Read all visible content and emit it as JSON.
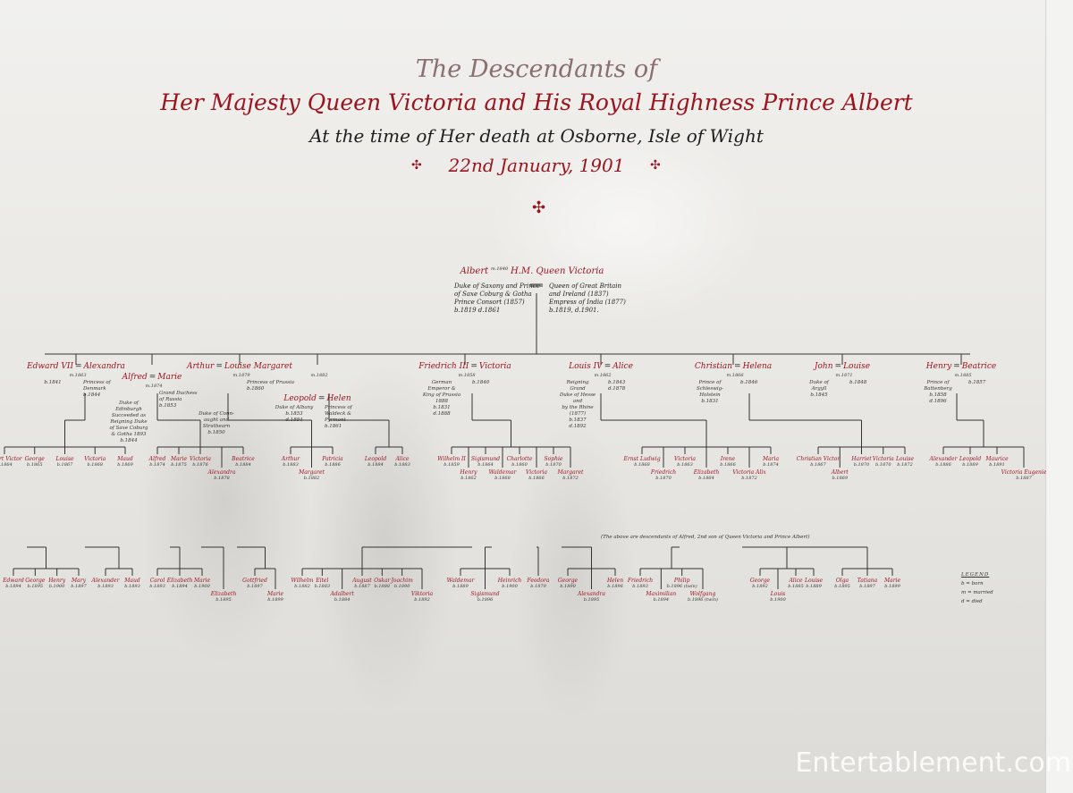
{
  "title": {
    "line1": "The Descendants of",
    "line2": "Her Majesty Queen Victoria and His Royal Highness Prince Albert",
    "line3": "At the time of Her death at Osborne, Isle of Wight",
    "line4": "22nd January, 1901",
    "ornament": "✣"
  },
  "root": {
    "husband": "Albert",
    "marriage": "m.1840",
    "wife": "H.M. Queen Victoria",
    "husband_details": "Duke of Saxony and Prince\nof Saxe Coburg & Gotha\nPrince Consort (1857)\nb.1819  d.1861",
    "wife_details": "Queen of Great Britain\nand Ireland (1837)\nEmpress of India (1877)\nb.1819, d.1901."
  },
  "children": [
    {
      "name": "Edward VII",
      "spouse": "Alexandra",
      "marriage": "m.1863",
      "details": "b.1841",
      "spouse_details": "Princess of\nDenmark\nb.1844"
    },
    {
      "name": "Alfred",
      "spouse": "Marie",
      "marriage": "m.1874",
      "details": "Duke of\nEdinburgh\nSucceeded as\nReigning Duke\nof Saxe Coburg\n& Gotha 1893\nb.1844",
      "spouse_details": "Grand Duchess\nof Russia\nb.1853"
    },
    {
      "name": "Arthur",
      "spouse": "Louise Margaret",
      "marriage": "m.1879",
      "details": "Duke of Conn-\naught and\nStrathearn\nb.1850",
      "spouse_details": "Princess of Prussia\nb.1860"
    },
    {
      "name": "Leopold",
      "spouse": "Helen",
      "marriage": "m.1882",
      "details": "Duke of Albany\nb.1853\nd.1884",
      "spouse_details": "Princess of\nWaldeck &\nPyrmont\nb.1861"
    },
    {
      "name": "Friedrich III",
      "spouse": "Victoria",
      "marriage": "m.1858",
      "details": "German Emperor &\nKing of Prussia 1888\nb.1831\nd.1888",
      "spouse_details": "b.1840"
    },
    {
      "name": "Louis IV",
      "spouse": "Alice",
      "marriage": "m.1862",
      "details": "Reigning Grand\nDuke of Hesse and\nby the Rhine (1877)\nb.1837\nd.1892",
      "spouse_details": "b.1843\nd.1878"
    },
    {
      "name": "Christian",
      "spouse": "Helena",
      "marriage": "m.1866",
      "details": "Prince of Schleswig-\nHolstein\nb.1831",
      "spouse_details": "b.1846"
    },
    {
      "name": "John",
      "spouse": "Louise",
      "marriage": "m.1871",
      "details": "Duke of\nArgyll\nb.1845",
      "spouse_details": "b.1848"
    },
    {
      "name": "Henry",
      "spouse": "Beatrice",
      "marriage": "m.1885",
      "details": "Prince of\nBattenberg\nb.1858\nd.1896",
      "spouse_details": "b.1857"
    }
  ],
  "grandchildren": [
    [
      {
        "n": "Albert Victor",
        "b": "b.1864"
      },
      {
        "n": "George",
        "b": "b.1865"
      },
      {
        "n": "Louise",
        "b": "b.1867"
      },
      {
        "n": "Victoria",
        "b": "b.1868"
      },
      {
        "n": "Maud",
        "b": "b.1869"
      }
    ],
    [
      {
        "n": "Alfred",
        "b": "b.1874"
      },
      {
        "n": "Marie",
        "b": "b.1875"
      },
      {
        "n": "Victoria",
        "b": "b.1876"
      },
      {
        "n": "Alexandra",
        "b": "b.1878"
      },
      {
        "n": "Beatrice",
        "b": "b.1884"
      }
    ],
    [
      {
        "n": "Arthur",
        "b": "b.1883"
      },
      {
        "n": "Margaret",
        "b": "b.1882"
      },
      {
        "n": "Patricia",
        "b": "b.1886"
      }
    ],
    [
      {
        "n": "Leopold",
        "b": "b.1884"
      },
      {
        "n": "Alice",
        "b": "b.1883"
      }
    ],
    [
      {
        "n": "Wilhelm II",
        "b": "b.1859"
      },
      {
        "n": "Henry",
        "b": "b.1862"
      },
      {
        "n": "Sigismund",
        "b": "b.1864"
      },
      {
        "n": "Waldemar",
        "b": "b.1868"
      },
      {
        "n": "Charlotte",
        "b": "b.1860"
      },
      {
        "n": "Victoria",
        "b": "b.1866"
      },
      {
        "n": "Sophie",
        "b": "b.1870"
      },
      {
        "n": "Margaret",
        "b": "b.1872"
      }
    ],
    [
      {
        "n": "Ernst Ludwig",
        "b": "b.1868"
      },
      {
        "n": "Friedrich",
        "b": "b.1870"
      },
      {
        "n": "Victoria",
        "b": "b.1863"
      },
      {
        "n": "Elizabeth",
        "b": "b.1864"
      },
      {
        "n": "Irene",
        "b": "b.1866"
      },
      {
        "n": "Victoria Alix",
        "b": "b.1872"
      },
      {
        "n": "Maria",
        "b": "b.1874"
      }
    ],
    [
      {
        "n": "Christian Victor",
        "b": "b.1867"
      },
      {
        "n": "Albert",
        "b": "b.1869"
      },
      {
        "n": "Harriet",
        "b": "b.1870"
      },
      {
        "n": "Victoria",
        "b": "b.1870"
      },
      {
        "n": "Louise",
        "b": "b.1872"
      }
    ],
    [
      {
        "n": "Alexander",
        "b": "b.1886"
      },
      {
        "n": "Leopold",
        "b": "b.1889"
      },
      {
        "n": "Maurice",
        "b": "b.1891"
      },
      {
        "n": "Victoria Eugenie",
        "b": "b.1887"
      }
    ]
  ],
  "great_grandchildren": [
    [
      {
        "n": "Edward",
        "b": "b.1894"
      },
      {
        "n": "George",
        "b": "b.1895"
      },
      {
        "n": "Henry",
        "b": "b.1900"
      },
      {
        "n": "Mary",
        "b": "b.1897"
      }
    ],
    [
      {
        "n": "Alexander",
        "b": "b.1893"
      },
      {
        "n": "Maud",
        "b": "b.1893"
      }
    ],
    [
      {
        "n": "Carol",
        "b": "b.1893"
      },
      {
        "n": "Elizabeth",
        "b": "b.1894"
      },
      {
        "n": "Marie",
        "b": "b.1900"
      }
    ],
    [
      {
        "n": "Elizabeth",
        "b": "b.1895"
      }
    ],
    [
      {
        "n": "Gottfried",
        "b": "b.1897"
      },
      {
        "n": "Marie",
        "b": "b.1899"
      }
    ],
    [
      {
        "n": "Wilhelm",
        "b": "b.1882"
      },
      {
        "n": "Eitel",
        "b": "b.1883"
      },
      {
        "n": "Adalbert",
        "b": "b.1884"
      },
      {
        "n": "August",
        "b": "b.1887"
      },
      {
        "n": "Oskar",
        "b": "b.1888"
      },
      {
        "n": "Joachim",
        "b": "b.1890"
      },
      {
        "n": "Viktoria",
        "b": "b.1892"
      }
    ],
    [
      {
        "n": "Waldemar",
        "b": "b.1889"
      },
      {
        "n": "Sigismund",
        "b": "b.1896"
      },
      {
        "n": "Heinrich",
        "b": "b.1900"
      }
    ],
    [
      {
        "n": "Feodora",
        "b": "b.1879"
      }
    ],
    [
      {
        "n": "George",
        "b": "b.1890"
      },
      {
        "n": "Alexandra",
        "b": "b.1895"
      },
      {
        "n": "Helen",
        "b": "b.1896"
      }
    ],
    [
      {
        "n": "Friedrich",
        "b": "b.1893"
      },
      {
        "n": "Maximilian",
        "b": "b.1894"
      },
      {
        "n": "Philip",
        "b": "b.1896 (twin)"
      },
      {
        "n": "Wolfgang",
        "b": "b.1896 (twin)"
      }
    ],
    [
      {
        "n": "George",
        "b": "b.1892"
      },
      {
        "n": "Louis",
        "b": "b.1900"
      },
      {
        "n": "Alice",
        "b": "b.1885"
      },
      {
        "n": "Louise",
        "b": "b.1889"
      }
    ],
    [
      {
        "n": "Olga",
        "b": "b.1895"
      },
      {
        "n": "Tatiana",
        "b": "b.1897"
      },
      {
        "n": "Marie",
        "b": "b.1899"
      }
    ]
  ],
  "note": "(The above are descendants of Alfred, 2nd son of Queen Victoria and Prince Albert)",
  "legend": {
    "title": "LEGEND",
    "born": "b = born",
    "married": "m = married",
    "died": "d = died"
  },
  "watermark": "Entertablement.com",
  "colors": {
    "accent_red": "#9b1520",
    "ink": "#2a2a2a",
    "paper": "#e6e5e1"
  }
}
